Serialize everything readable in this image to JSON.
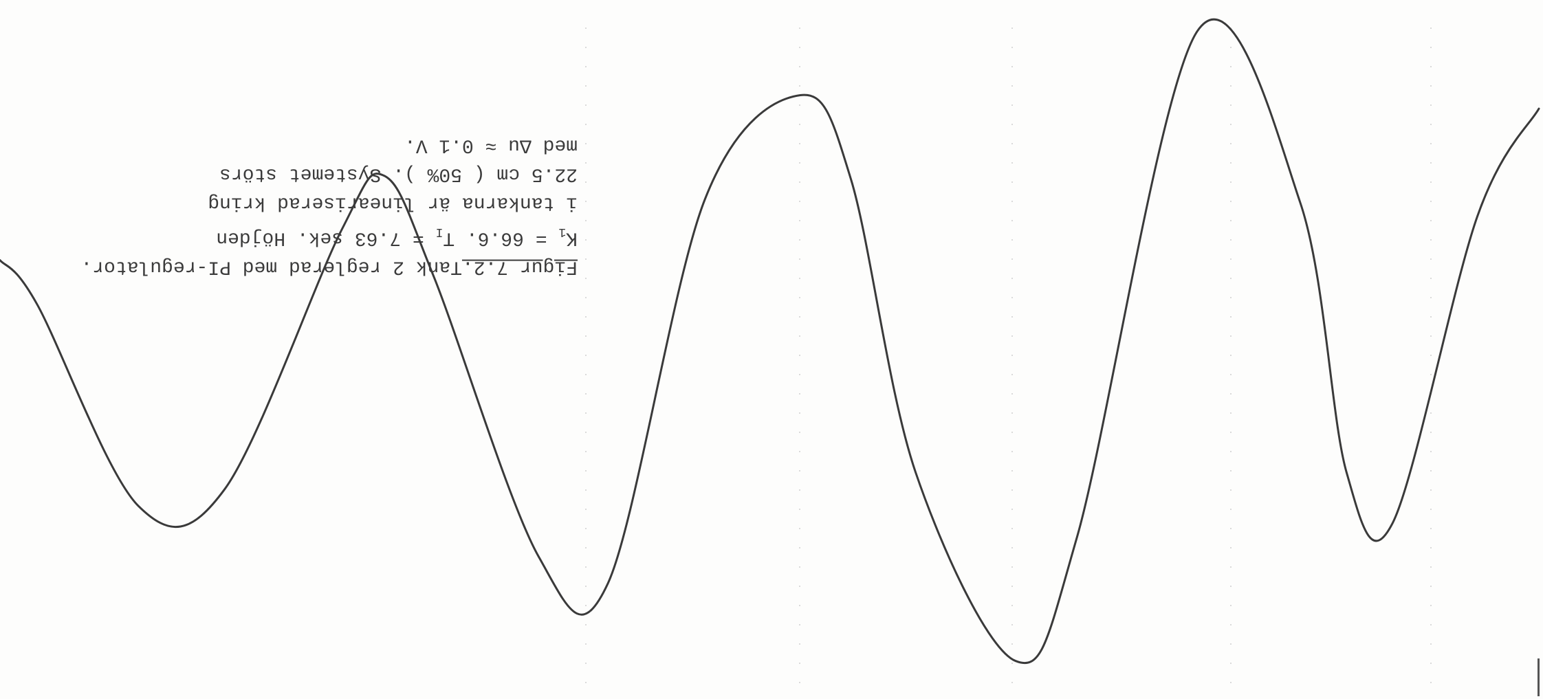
{
  "caption": {
    "figure_id": "Figur 7.2.",
    "title_rest": "Tank 2 reglerad med PI-regulator.",
    "k_symbol": "K",
    "k_subscript": "1",
    "k_value": " = 66.6. ",
    "t_symbol": "T",
    "t_subscript": "I",
    "t_value": " = 7.63 sek. Höjden",
    "line3": "i tankarna är lineariserad kring",
    "line4": "22.5 cm ( 50% ). Systemet störs",
    "line5": "med Δu ≈ 0.1 V."
  },
  "chart_data": {
    "type": "line",
    "orientation": "rotated 180 degrees (scanned upside down)",
    "grid": "faint dotted vertical lines",
    "line_color": "#3a3a3a",
    "background": "#fdfdfc",
    "xlim": [
      0,
      100
    ],
    "ylim": [
      -1,
      1
    ],
    "series": [
      {
        "x": [
          0,
          2.4,
          9,
          14.6,
          22.2,
          25,
          28.2,
          35,
          39.5,
          45.8,
          52,
          55.3,
          59.5,
          66,
          70,
          77.8,
          84.5,
          87.5,
          90.5,
          96,
          100
        ],
        "values": [
          0.26,
          0.13,
          -0.47,
          -0.42,
          0.35,
          0.51,
          0.21,
          -0.62,
          -0.7,
          0.44,
          0.75,
          0.5,
          -0.37,
          -0.93,
          -0.56,
          0.94,
          0.43,
          -0.37,
          -0.52,
          0.39,
          0.71
        ]
      }
    ]
  }
}
